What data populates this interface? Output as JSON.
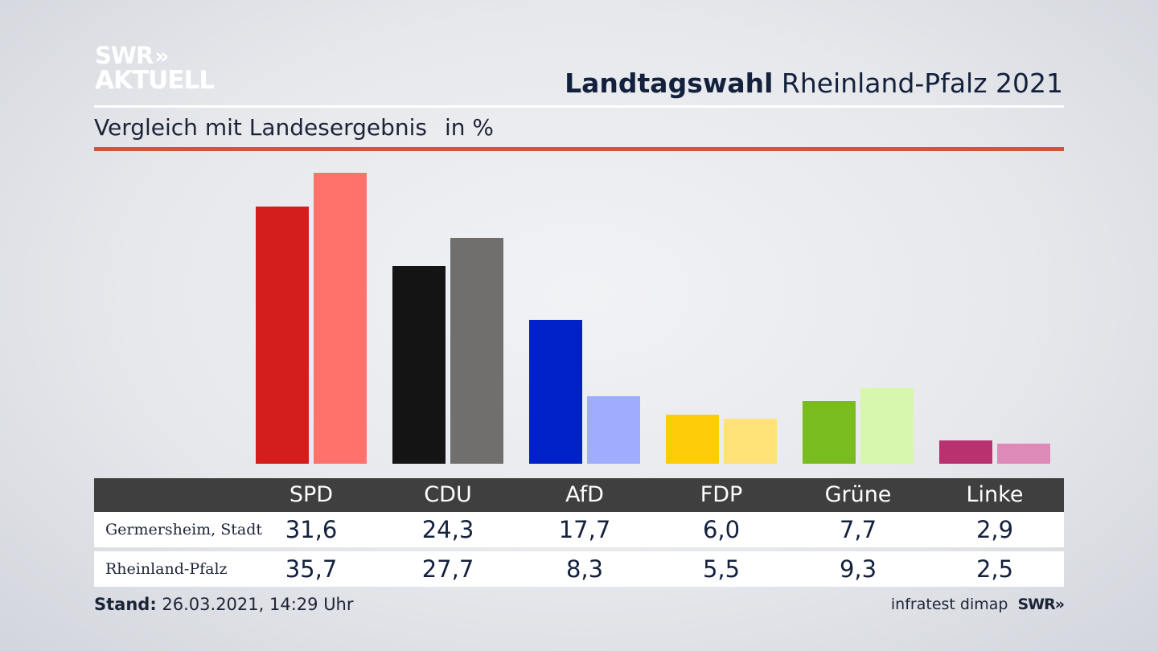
{
  "logo": {
    "line1": "SWR",
    "chevrons": "»",
    "line2": "AKTUELL"
  },
  "header": {
    "title_bold": "Landtagswahl",
    "title_rest": "Rheinland-Pfalz 2021"
  },
  "subtitle": {
    "text": "Vergleich mit Landesergebnis",
    "unit": "in %"
  },
  "chart_data": {
    "type": "bar",
    "title": "Landtagswahl Rheinland-Pfalz 2021",
    "subtitle": "Vergleich mit Landesergebnis in %",
    "categories": [
      "SPD",
      "CDU",
      "AfD",
      "FDP",
      "Grüne",
      "Linke"
    ],
    "series": [
      {
        "name": "Germersheim, Stadt",
        "labels": [
          "31,6",
          "24,3",
          "17,7",
          "6,0",
          "7,7",
          "2,9"
        ],
        "values": [
          31.6,
          24.3,
          17.7,
          6.0,
          7.7,
          2.9
        ],
        "colors": [
          "#d41e1e",
          "#141414",
          "#0021c8",
          "#ffcc0a",
          "#78bc20",
          "#b93270"
        ]
      },
      {
        "name": "Rheinland-Pfalz",
        "labels": [
          "35,7",
          "27,7",
          "8,3",
          "5,5",
          "9,3",
          "2,5"
        ],
        "values": [
          35.7,
          27.7,
          8.3,
          5.5,
          9.3,
          2.5
        ],
        "colors": [
          "#ff726c",
          "#706f6d",
          "#9fadff",
          "#ffe178",
          "#d6f7ad",
          "#de8ab8"
        ]
      }
    ],
    "ylim": [
      0,
      35.7
    ]
  },
  "footer": {
    "stand_label": "Stand:",
    "stand_value": "26.03.2021, 14:29 Uhr",
    "source": "infratest dimap",
    "brand": "SWR»"
  }
}
